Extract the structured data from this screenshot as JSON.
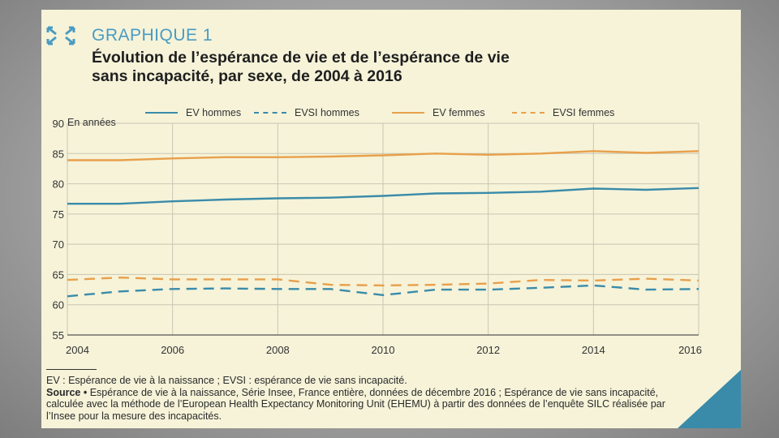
{
  "header": {
    "kicker": "GRAPHIQUE 1",
    "title_line1": "Évolution de l’espérance de vie et de l’espérance de vie",
    "title_line2": "sans incapacité, par sexe, de 2004 à 2016"
  },
  "colors": {
    "blue": "#3a8ba9",
    "orange": "#e8a04b",
    "accent": "#4a9bc1",
    "background": "#f6f3d9"
  },
  "chart_data": {
    "type": "line",
    "ylabel": "En années",
    "ylim": [
      55,
      90
    ],
    "yticks": [
      "90",
      "85",
      "80",
      "75",
      "70",
      "65",
      "60",
      "55"
    ],
    "xlim": [
      2004,
      2016
    ],
    "xticks": [
      "2004",
      "2006",
      "2008",
      "2010",
      "2012",
      "2014",
      "2016"
    ],
    "x": [
      2004,
      2005,
      2006,
      2007,
      2008,
      2009,
      2010,
      2011,
      2012,
      2013,
      2014,
      2015,
      2016
    ],
    "grid": true,
    "legend_position": "top",
    "series": [
      {
        "name": "EV hommes",
        "style": "solid",
        "color": "#3a8ba9",
        "values": [
          76.7,
          76.7,
          77.1,
          77.4,
          77.6,
          77.7,
          78.0,
          78.4,
          78.5,
          78.7,
          79.2,
          79.0,
          79.3
        ]
      },
      {
        "name": "EVSI hommes",
        "style": "dashed",
        "color": "#3a8ba9",
        "values": [
          61.4,
          62.2,
          62.6,
          62.7,
          62.6,
          62.6,
          61.6,
          62.5,
          62.5,
          62.8,
          63.2,
          62.5,
          62.6
        ]
      },
      {
        "name": "EV femmes",
        "style": "solid",
        "color": "#e8a04b",
        "values": [
          83.9,
          83.9,
          84.2,
          84.4,
          84.4,
          84.5,
          84.7,
          85.0,
          84.8,
          85.0,
          85.4,
          85.1,
          85.4
        ]
      },
      {
        "name": "EVSI femmes",
        "style": "dashed",
        "color": "#e8a04b",
        "values": [
          64.1,
          64.5,
          64.2,
          64.2,
          64.2,
          63.3,
          63.2,
          63.3,
          63.5,
          64.1,
          64.0,
          64.3,
          64.0
        ]
      }
    ]
  },
  "notes": {
    "definition": "EV : Espérance de vie à la naissance ; EVSI : espérance de vie sans incapacité.",
    "source_label": "Source •",
    "source_text": " Espérance de vie à la naissance, Série Insee, France entière, données de décembre 2016 ; Espérance de vie sans incapacité, calculée avec la méthode de l’European Health Expectancy Monitoring Unit (EHEMU) à partir des données de l’enquête SILC réalisée par l’Insee pour la mesure des incapacités."
  }
}
